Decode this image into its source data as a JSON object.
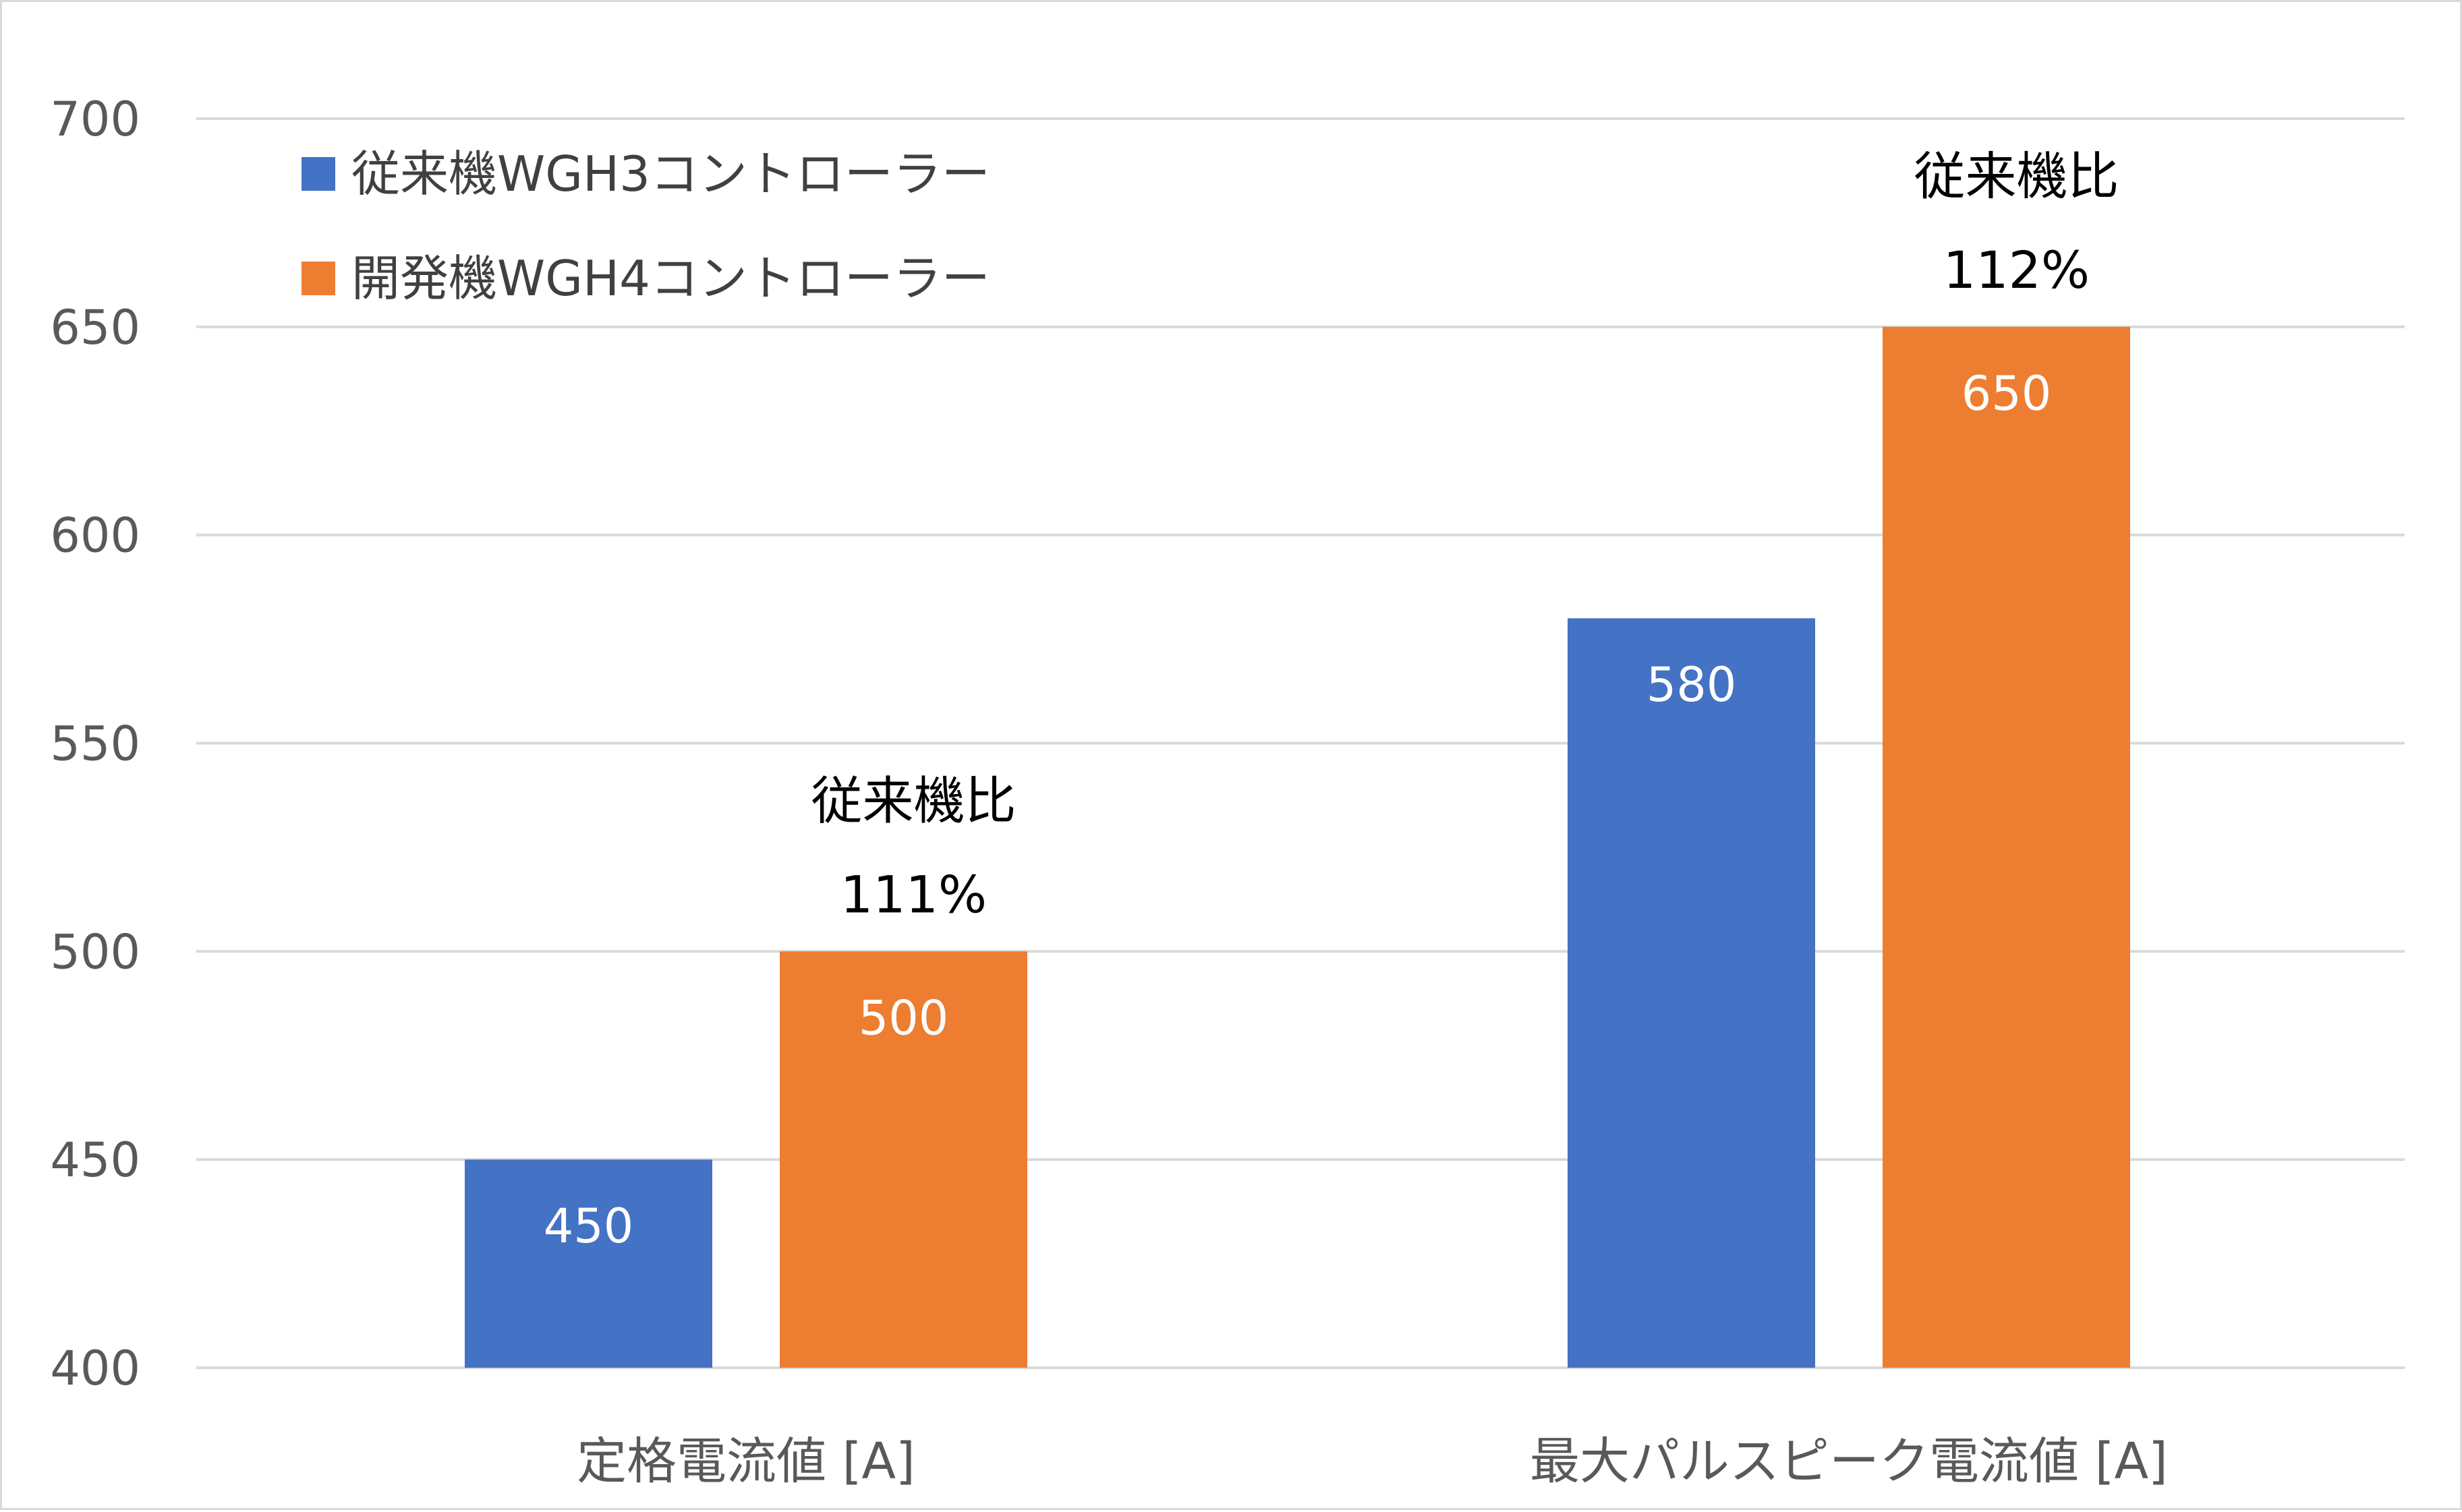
{
  "chart_data": {
    "type": "bar",
    "categories": [
      "定格電流値 [A]",
      "最大パルスピーク電流値 [A]"
    ],
    "series": [
      {
        "name": "従来機WGH3コントローラー",
        "values": [
          450,
          580
        ],
        "color": "#4472C4"
      },
      {
        "name": "開発機WGH4コントローラー",
        "values": [
          500,
          650
        ],
        "color": "#ED7D31"
      }
    ],
    "ylim": [
      400,
      700
    ],
    "yticks": [
      400,
      450,
      500,
      550,
      600,
      650,
      700
    ],
    "grid": true,
    "legend_position": "top-left",
    "annotations": [
      {
        "category_index": 0,
        "line1": "従来機比",
        "line2": "111%"
      },
      {
        "category_index": 1,
        "line1": "従来機比",
        "line2": "112%"
      }
    ],
    "gridline_color": "#d9d9d9",
    "data_label_color": "#ffffff"
  }
}
